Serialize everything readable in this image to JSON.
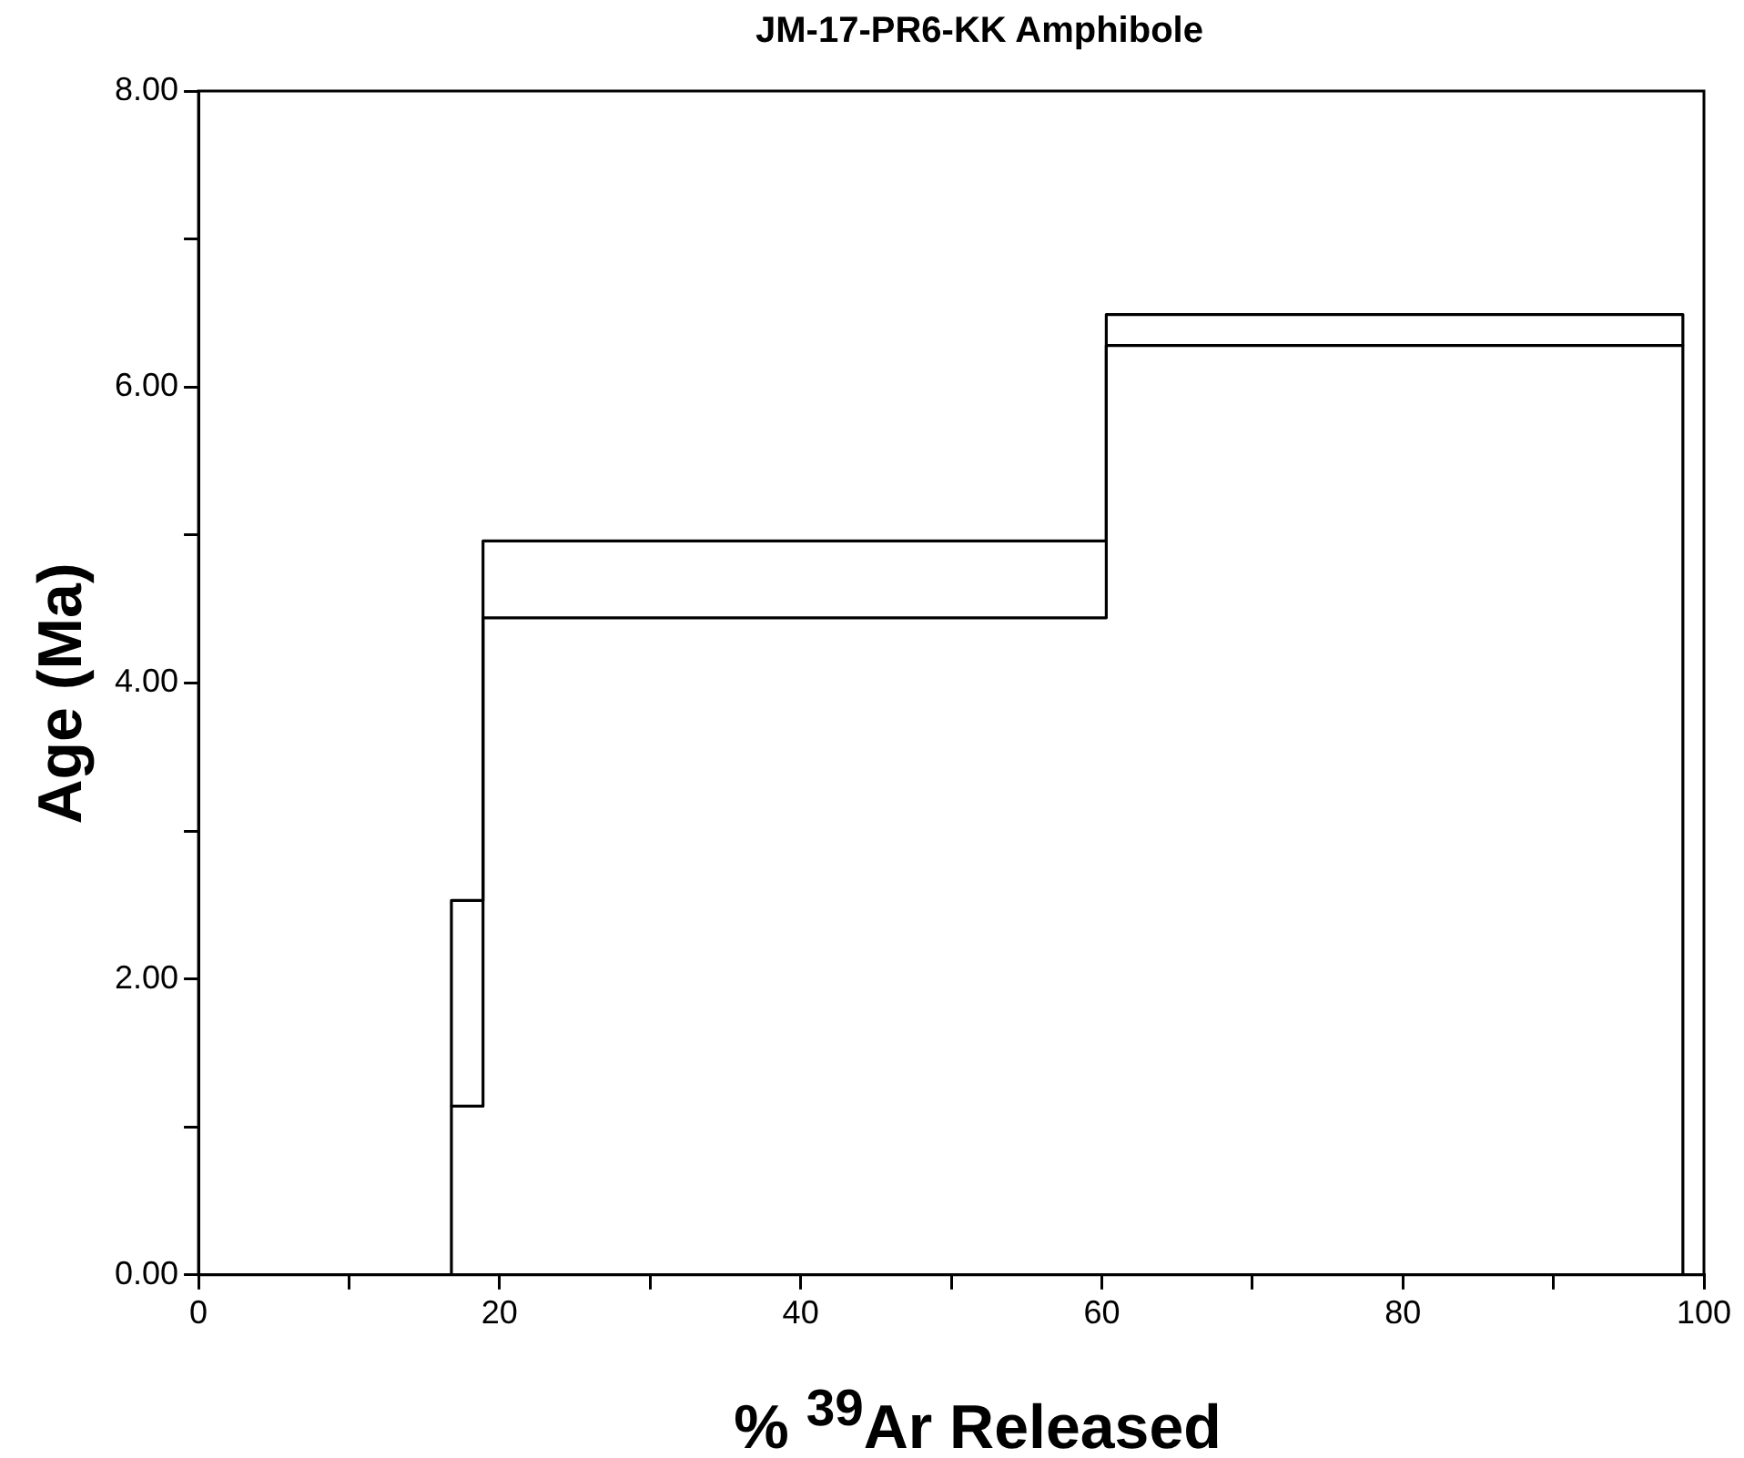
{
  "chart_data": {
    "type": "step",
    "title": "JM-17-PR6-KK Amphibole",
    "xlabel": "% $^{39}$Ar Released",
    "ylabel": "Age (Ma)",
    "series": [
      {
        "color": "#000000",
        "x": [
          16.8,
          16.8,
          18.9,
          60.3,
          98.6,
          98.6
        ],
        "values": [
          0,
          1.14,
          4.44,
          6.28,
          6.28,
          0
        ]
      },
      {
        "color": "#000000",
        "x": [
          16.8,
          16.8,
          18.9,
          60.3,
          98.6,
          98.6
        ],
        "values": [
          1.14,
          2.53,
          4.96,
          6.49,
          6.49,
          6.28
        ]
      }
    ],
    "xlim": [
      0,
      100
    ],
    "xticks": [
      0,
      {
        "value": 10,
        "label": null
      },
      20,
      {
        "value": 30,
        "label": null
      },
      40,
      {
        "value": 50,
        "label": null
      },
      60,
      {
        "value": 70,
        "label": null
      },
      80,
      {
        "value": 90,
        "label": null
      },
      100
    ],
    "ylim": [
      0,
      8
    ],
    "yticks": [
      {
        "value": 0,
        "label": "0.00"
      },
      {
        "value": 1,
        "label": null
      },
      {
        "value": 2,
        "label": "2.00"
      },
      {
        "value": 3,
        "label": null
      },
      {
        "value": 4,
        "label": "4.00"
      },
      {
        "value": 5,
        "label": null
      },
      {
        "value": 6,
        "label": "6.00"
      },
      {
        "value": 7,
        "label": null
      },
      {
        "value": 8,
        "label": "8.00"
      }
    ],
    "grid": false,
    "legend": false,
    "marker": "none",
    "line_style": "solid"
  }
}
